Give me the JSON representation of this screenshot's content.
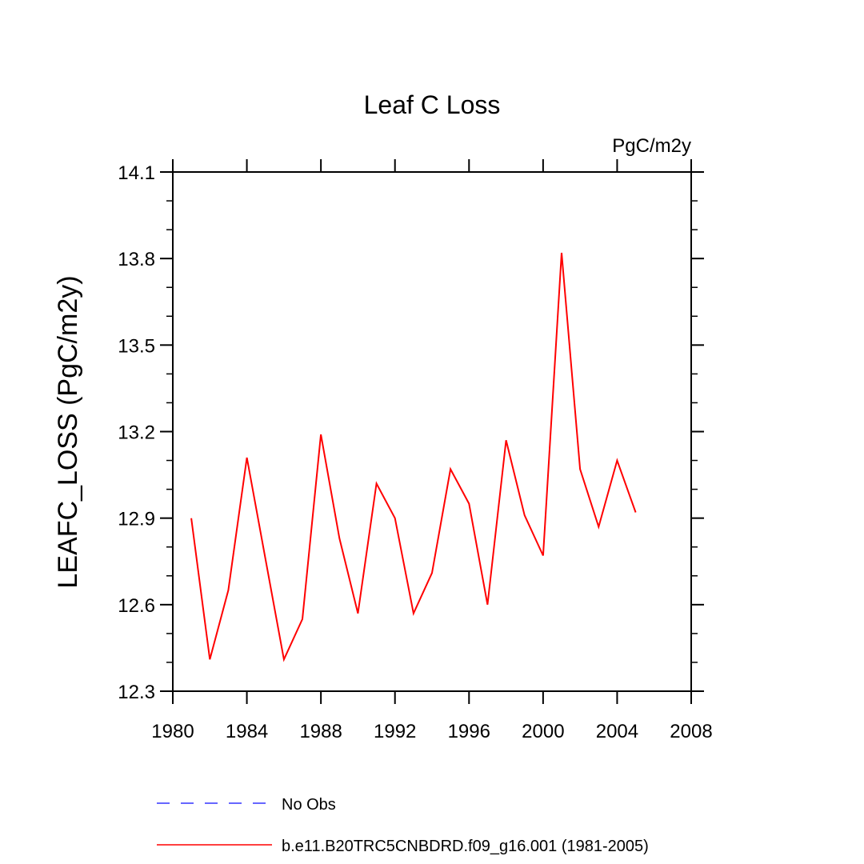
{
  "chart_data": {
    "type": "line",
    "title": "Leaf C Loss",
    "units": "PgC/m2y",
    "xlabel": "",
    "ylabel": "LEAFC_LOSS  (PgC/m2y)",
    "xlim": [
      1980,
      2008
    ],
    "ylim": [
      12.3,
      14.1
    ],
    "x_ticks": [
      1980,
      1984,
      1988,
      1992,
      1996,
      2000,
      2004,
      2008
    ],
    "x_tick_labels": [
      "1980",
      "1984",
      "1988",
      "1992",
      "1996",
      "2000",
      "2004",
      "2008"
    ],
    "y_ticks": [
      12.3,
      12.6,
      12.9,
      13.2,
      13.5,
      13.8,
      14.1
    ],
    "y_tick_labels": [
      "12.3",
      "12.6",
      "12.9",
      "13.2",
      "13.5",
      "13.8",
      "14.1"
    ],
    "grid": false,
    "legend_position": "bottom",
    "series": [
      {
        "name": "No Obs",
        "color": "#3333ff",
        "dash": "dashed",
        "x": [],
        "values": []
      },
      {
        "name": "b.e11.B20TRC5CNBDRD.f09_g16.001 (1981-2005)",
        "color": "#ff0000",
        "dash": "solid",
        "x": [
          1981,
          1982,
          1983,
          1984,
          1985,
          1986,
          1987,
          1988,
          1989,
          1990,
          1991,
          1992,
          1993,
          1994,
          1995,
          1996,
          1997,
          1998,
          1999,
          2000,
          2001,
          2002,
          2003,
          2004,
          2005
        ],
        "values": [
          12.9,
          12.41,
          12.65,
          13.11,
          12.76,
          12.41,
          12.55,
          13.19,
          12.83,
          12.57,
          13.02,
          12.9,
          12.57,
          12.71,
          13.07,
          12.95,
          12.6,
          13.17,
          12.91,
          12.77,
          13.82,
          13.07,
          12.87,
          13.1,
          12.92
        ]
      }
    ]
  }
}
